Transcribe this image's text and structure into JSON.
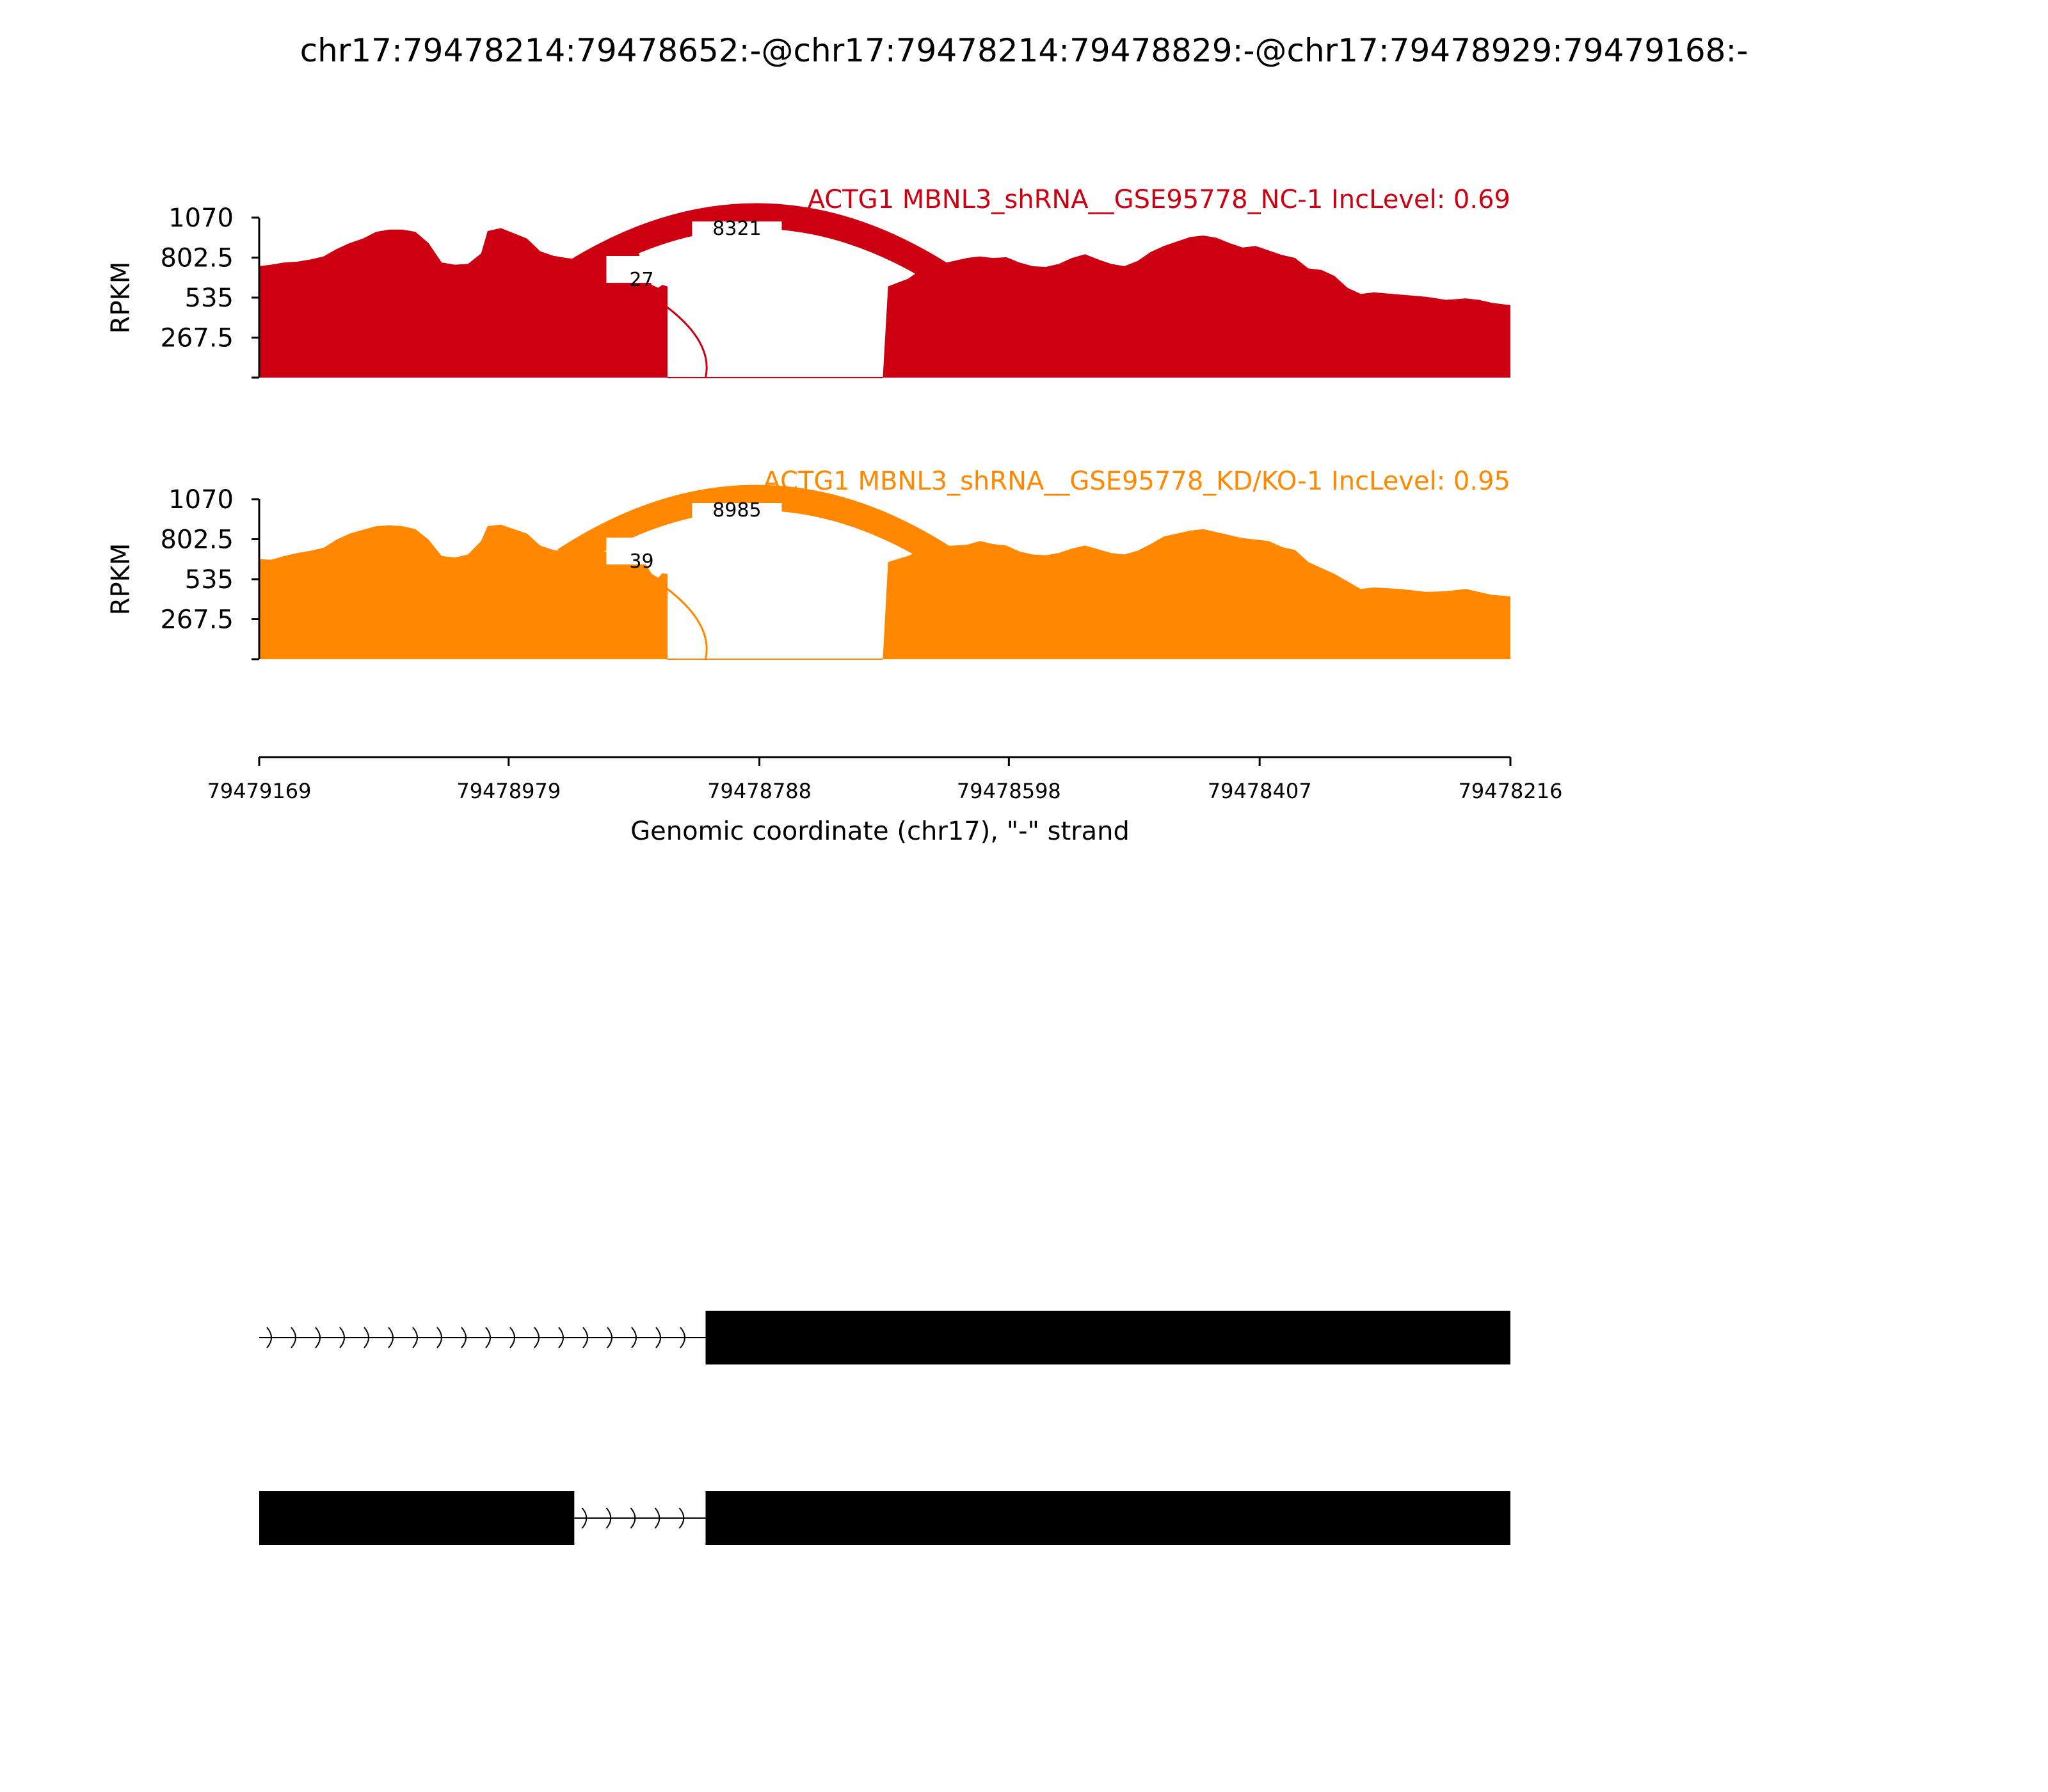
{
  "title": "chr17:79478214:79478652:-@chr17:79478214:79478829:-@chr17:79478929:79479168:-",
  "colors": {
    "sample_1": "#cc0011",
    "sample_2": "#ff8800",
    "text": "#000000",
    "background": "#ffffff",
    "gene_model": "#000000"
  },
  "chart_data": {
    "type": "area",
    "x_range": [
      79479169,
      79478216
    ],
    "x_reversed": true,
    "xlabel": "Genomic coordinate (chr17), \"-\" strand",
    "x_ticks": [
      79479169,
      79478979,
      79478788,
      79478598,
      79478407,
      79478216
    ],
    "ylabel": "RPKM",
    "y_range": [
      0,
      1070
    ],
    "y_ticks": [
      267.5,
      535,
      802.5,
      1070
    ],
    "y_tick_labels": [
      "267.5",
      "535",
      "802.5",
      "1070"
    ],
    "tracks": [
      {
        "label": "ACTG1 MBNL3_shRNA__GSE95778_NC-1 IncLevel: 0.69",
        "color": "#cc0011",
        "coverage_segments": [
          {
            "points": [
              [
                79479169,
                745
              ],
              [
                79479160,
                755
              ],
              [
                79479150,
                770
              ],
              [
                79479140,
                775
              ],
              [
                79479130,
                790
              ],
              [
                79479120,
                810
              ],
              [
                79479110,
                860
              ],
              [
                79479100,
                900
              ],
              [
                79479090,
                930
              ],
              [
                79479080,
                975
              ],
              [
                79479070,
                990
              ],
              [
                79479060,
                990
              ],
              [
                79479050,
                975
              ],
              [
                79479040,
                900
              ],
              [
                79479030,
                770
              ],
              [
                79479020,
                755
              ],
              [
                79479010,
                760
              ],
              [
                79479000,
                830
              ],
              [
                79478995,
                980
              ],
              [
                79478985,
                1000
              ],
              [
                79478975,
                965
              ],
              [
                79478965,
                930
              ],
              [
                79478955,
                845
              ],
              [
                79478945,
                815
              ],
              [
                79478935,
                800
              ],
              [
                79478925,
                790
              ],
              [
                79478915,
                785
              ],
              [
                79478905,
                800
              ],
              [
                79478895,
                800
              ],
              [
                79478888,
                930
              ],
              [
                79478882,
                880
              ],
              [
                79478875,
                710
              ],
              [
                79478870,
                620
              ],
              [
                79478865,
                600
              ],
              [
                79478862,
                620
              ],
              [
                79478858,
                610
              ]
            ]
          },
          {
            "points": [
              [
                79478694,
                0
              ],
              [
                79478690,
                610
              ],
              [
                79478675,
                660
              ],
              [
                79478662,
                740
              ],
              [
                79478650,
                760
              ],
              [
                79478640,
                780
              ],
              [
                79478630,
                800
              ],
              [
                79478620,
                810
              ],
              [
                79478610,
                800
              ],
              [
                79478600,
                805
              ],
              [
                79478590,
                770
              ],
              [
                79478580,
                745
              ],
              [
                79478570,
                740
              ],
              [
                79478560,
                760
              ],
              [
                79478550,
                800
              ],
              [
                79478540,
                825
              ],
              [
                79478530,
                790
              ],
              [
                79478520,
                760
              ],
              [
                79478510,
                745
              ],
              [
                79478500,
                780
              ],
              [
                79478490,
                840
              ],
              [
                79478480,
                880
              ],
              [
                79478470,
                910
              ],
              [
                79478460,
                940
              ],
              [
                79478450,
                950
              ],
              [
                79478440,
                935
              ],
              [
                79478430,
                900
              ],
              [
                79478420,
                870
              ],
              [
                79478410,
                880
              ],
              [
                79478400,
                850
              ],
              [
                79478390,
                820
              ],
              [
                79478380,
                800
              ],
              [
                79478370,
                730
              ],
              [
                79478360,
                720
              ],
              [
                79478350,
                680
              ],
              [
                79478340,
                600
              ],
              [
                79478330,
                560
              ],
              [
                79478320,
                570
              ],
              [
                79478300,
                555
              ],
              [
                79478280,
                540
              ],
              [
                79478265,
                520
              ],
              [
                79478250,
                530
              ],
              [
                79478240,
                520
              ],
              [
                79478230,
                500
              ],
              [
                79478216,
                485
              ]
            ]
          }
        ],
        "junctions": [
          {
            "count": "8321",
            "from": 79478929,
            "to": 79478652
          },
          {
            "count": "27",
            "from": 79478829,
            "to": 79478652
          }
        ]
      },
      {
        "label": "ACTG1 MBNL3_shRNA__GSE95778_KD/KO-1 IncLevel: 0.95",
        "color": "#ff8800",
        "coverage_segments": [
          {
            "points": [
              [
                79479169,
                670
              ],
              [
                79479160,
                665
              ],
              [
                79479150,
                690
              ],
              [
                79479140,
                710
              ],
              [
                79479130,
                725
              ],
              [
                79479120,
                745
              ],
              [
                79479110,
                800
              ],
              [
                79479100,
                840
              ],
              [
                79479090,
                865
              ],
              [
                79479080,
                890
              ],
              [
                79479070,
                895
              ],
              [
                79479060,
                890
              ],
              [
                79479050,
                870
              ],
              [
                79479040,
                800
              ],
              [
                79479030,
                690
              ],
              [
                79479020,
                680
              ],
              [
                79479010,
                700
              ],
              [
                79479000,
                790
              ],
              [
                79478995,
                890
              ],
              [
                79478985,
                900
              ],
              [
                79478975,
                870
              ],
              [
                79478965,
                840
              ],
              [
                79478955,
                760
              ],
              [
                79478945,
                730
              ],
              [
                79478935,
                720
              ],
              [
                79478925,
                715
              ],
              [
                79478915,
                710
              ],
              [
                79478905,
                720
              ],
              [
                79478895,
                730
              ],
              [
                79478888,
                840
              ],
              [
                79478882,
                790
              ],
              [
                79478875,
                640
              ],
              [
                79478870,
                570
              ],
              [
                79478865,
                545
              ],
              [
                79478862,
                575
              ],
              [
                79478858,
                570
              ]
            ]
          },
          {
            "points": [
              [
                79478694,
                0
              ],
              [
                79478690,
                650
              ],
              [
                79478675,
                690
              ],
              [
                79478662,
                740
              ],
              [
                79478650,
                755
              ],
              [
                79478640,
                760
              ],
              [
                79478630,
                765
              ],
              [
                79478620,
                790
              ],
              [
                79478610,
                770
              ],
              [
                79478600,
                760
              ],
              [
                79478590,
                720
              ],
              [
                79478580,
                700
              ],
              [
                79478570,
                695
              ],
              [
                79478560,
                710
              ],
              [
                79478550,
                740
              ],
              [
                79478540,
                760
              ],
              [
                79478530,
                735
              ],
              [
                79478520,
                710
              ],
              [
                79478510,
                700
              ],
              [
                79478500,
                725
              ],
              [
                79478490,
                770
              ],
              [
                79478480,
                820
              ],
              [
                79478470,
                840
              ],
              [
                79478460,
                860
              ],
              [
                79478450,
                870
              ],
              [
                79478440,
                850
              ],
              [
                79478430,
                830
              ],
              [
                79478420,
                810
              ],
              [
                79478410,
                800
              ],
              [
                79478400,
                790
              ],
              [
                79478390,
                750
              ],
              [
                79478380,
                730
              ],
              [
                79478370,
                650
              ],
              [
                79478360,
                610
              ],
              [
                79478350,
                570
              ],
              [
                79478340,
                520
              ],
              [
                79478330,
                470
              ],
              [
                79478320,
                480
              ],
              [
                79478300,
                470
              ],
              [
                79478280,
                450
              ],
              [
                79478265,
                455
              ],
              [
                79478250,
                470
              ],
              [
                79478240,
                450
              ],
              [
                79478230,
                430
              ],
              [
                79478216,
                420
              ]
            ]
          }
        ],
        "junctions": [
          {
            "count": "8985",
            "from": 79478929,
            "to": 79478652
          },
          {
            "count": "39",
            "from": 79478829,
            "to": 79478652
          }
        ]
      }
    ],
    "gene_model": [
      {
        "intron": [
          79479169,
          79478829
        ],
        "exons": [
          [
            79478829,
            79478216
          ]
        ]
      },
      {
        "intron": [
          79478929,
          79478829
        ],
        "exons": [
          [
            79479169,
            79478929
          ],
          [
            79478829,
            79478216
          ]
        ]
      }
    ]
  }
}
